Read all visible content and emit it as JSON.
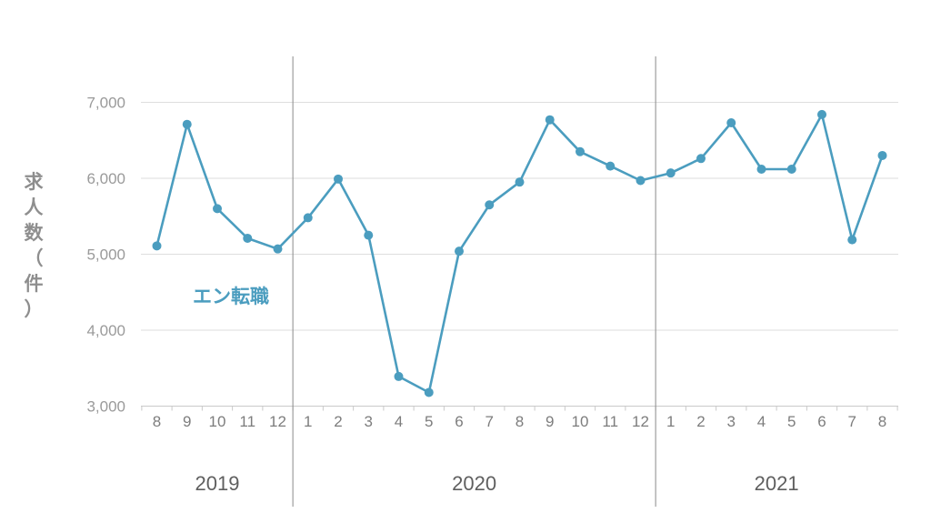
{
  "chart_data": {
    "type": "line",
    "ylabel": "求人数（件）",
    "ylim": [
      3000,
      7000
    ],
    "yticks": [
      3000,
      4000,
      5000,
      6000,
      7000
    ],
    "ytick_labels": [
      "3,000",
      "4,000",
      "5,000",
      "6,000",
      "7,000"
    ],
    "grid": true,
    "color": "#4b9dbf",
    "categories": [
      "8",
      "9",
      "10",
      "11",
      "12",
      "1",
      "2",
      "3",
      "4",
      "5",
      "6",
      "7",
      "8",
      "9",
      "10",
      "11",
      "12",
      "1",
      "2",
      "3",
      "4",
      "5",
      "6",
      "7",
      "8"
    ],
    "years": [
      {
        "label": "2019",
        "start": 0,
        "end": 4
      },
      {
        "label": "2020",
        "start": 5,
        "end": 16
      },
      {
        "label": "2021",
        "start": 17,
        "end": 24
      }
    ],
    "series": [
      {
        "name": "エン転職",
        "values": [
          5110,
          6710,
          5600,
          5210,
          5070,
          5480,
          5990,
          5250,
          3390,
          3180,
          5040,
          5650,
          5950,
          6770,
          6350,
          6160,
          5970,
          6070,
          6260,
          6730,
          6120,
          6120,
          6840,
          5190,
          6300
        ]
      }
    ]
  }
}
